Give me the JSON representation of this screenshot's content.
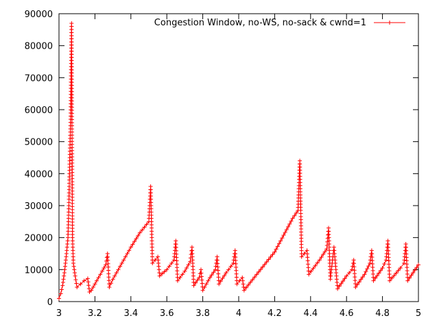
{
  "chart_data": {
    "type": "line",
    "title": "",
    "xlabel": "",
    "ylabel": "",
    "xlim": [
      3,
      5
    ],
    "ylim": [
      0,
      90000
    ],
    "x_ticks": [
      "3",
      "3.2",
      "3.4",
      "3.6",
      "3.8",
      "4",
      "4.2",
      "4.4",
      "4.6",
      "4.8",
      "5"
    ],
    "y_ticks": [
      "0",
      "10000",
      "20000",
      "30000",
      "40000",
      "50000",
      "60000",
      "70000",
      "80000",
      "90000"
    ],
    "grid": false,
    "legend_position": "top-right",
    "color": "#ff0000",
    "series": [
      {
        "name": "Congestion Window, no-WS, no-sack & cwnd=1",
        "points": [
          [
            3.0,
            1000
          ],
          [
            3.01,
            2500
          ],
          [
            3.02,
            5000
          ],
          [
            3.03,
            9000
          ],
          [
            3.04,
            14000
          ],
          [
            3.05,
            20000
          ],
          [
            3.055,
            30000
          ],
          [
            3.06,
            45000
          ],
          [
            3.065,
            58000
          ],
          [
            3.07,
            87000
          ],
          [
            3.075,
            20000
          ],
          [
            3.08,
            12000
          ],
          [
            3.09,
            8000
          ],
          [
            3.1,
            4500
          ],
          [
            3.12,
            5500
          ],
          [
            3.14,
            6500
          ],
          [
            3.16,
            7200
          ],
          [
            3.17,
            3000
          ],
          [
            3.18,
            3500
          ],
          [
            3.2,
            5500
          ],
          [
            3.22,
            7500
          ],
          [
            3.24,
            9500
          ],
          [
            3.26,
            11500
          ],
          [
            3.27,
            15000
          ],
          [
            3.28,
            4500
          ],
          [
            3.3,
            7000
          ],
          [
            3.35,
            12000
          ],
          [
            3.4,
            17000
          ],
          [
            3.45,
            21500
          ],
          [
            3.5,
            25000
          ],
          [
            3.51,
            36000
          ],
          [
            3.52,
            12000
          ],
          [
            3.55,
            14000
          ],
          [
            3.56,
            8000
          ],
          [
            3.6,
            10000
          ],
          [
            3.64,
            13000
          ],
          [
            3.65,
            19000
          ],
          [
            3.66,
            6500
          ],
          [
            3.7,
            9500
          ],
          [
            3.73,
            12500
          ],
          [
            3.74,
            17000
          ],
          [
            3.75,
            5000
          ],
          [
            3.78,
            7500
          ],
          [
            3.79,
            10000
          ],
          [
            3.8,
            3500
          ],
          [
            3.84,
            7500
          ],
          [
            3.87,
            10000
          ],
          [
            3.88,
            14000
          ],
          [
            3.89,
            5500
          ],
          [
            3.93,
            9000
          ],
          [
            3.97,
            12000
          ],
          [
            3.98,
            16000
          ],
          [
            3.99,
            5500
          ],
          [
            4.02,
            7500
          ],
          [
            4.03,
            3500
          ],
          [
            4.1,
            8500
          ],
          [
            4.2,
            15500
          ],
          [
            4.3,
            26000
          ],
          [
            4.33,
            28500
          ],
          [
            4.34,
            44000
          ],
          [
            4.35,
            14000
          ],
          [
            4.38,
            16000
          ],
          [
            4.39,
            8500
          ],
          [
            4.45,
            13000
          ],
          [
            4.49,
            16500
          ],
          [
            4.5,
            23000
          ],
          [
            4.51,
            7000
          ],
          [
            4.53,
            17000
          ],
          [
            4.55,
            4000
          ],
          [
            4.6,
            8000
          ],
          [
            4.63,
            10000
          ],
          [
            4.64,
            13000
          ],
          [
            4.65,
            4500
          ],
          [
            4.7,
            8500
          ],
          [
            4.73,
            12000
          ],
          [
            4.74,
            16000
          ],
          [
            4.75,
            6500
          ],
          [
            4.8,
            10500
          ],
          [
            4.82,
            13000
          ],
          [
            4.83,
            19000
          ],
          [
            4.84,
            6500
          ],
          [
            4.9,
            10500
          ],
          [
            4.92,
            12000
          ],
          [
            4.93,
            18000
          ],
          [
            4.94,
            6500
          ],
          [
            5.0,
            11500
          ]
        ]
      }
    ]
  }
}
